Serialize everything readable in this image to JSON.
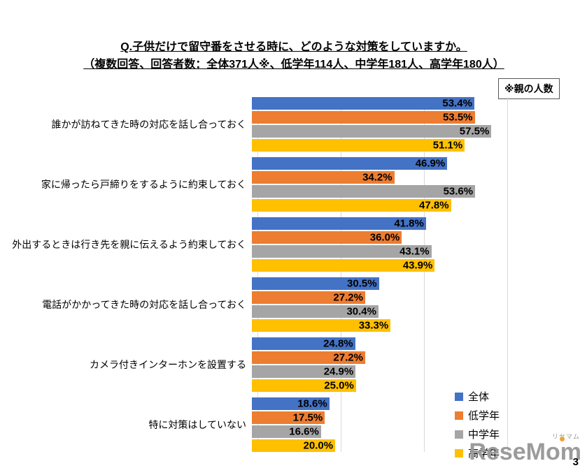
{
  "header": {
    "title": "Q.子供だけで留守番をさせる時に、どのような対策をしていますか。",
    "subtitle": "（複数回答、回答者数：全体371人※、低学年114人、中学年181人、高学年180人）",
    "note": "※親の人数"
  },
  "chart_data": {
    "type": "bar",
    "orientation": "horizontal",
    "title": "Q.子供だけで留守番をさせる時に、どのような対策をしていますか。",
    "categories": [
      "誰かが訪ねてきた時の対応を話し合っておく",
      "家に帰ったら戸締りをするように約束しておく",
      "外出するときは行き先を親に伝えるよう約束しておく",
      "電話がかかってきた時の対応を話し合っておく",
      "カメラ付きインターホンを設置する",
      "特に対策はしていない"
    ],
    "series": [
      {
        "name": "全体",
        "color": "#4472C4",
        "values": [
          53.4,
          46.9,
          41.8,
          30.5,
          24.8,
          18.6
        ]
      },
      {
        "name": "低学年",
        "color": "#ED7D31",
        "values": [
          53.5,
          34.2,
          36.0,
          27.2,
          27.2,
          17.5
        ]
      },
      {
        "name": "中学年",
        "color": "#A5A5A5",
        "values": [
          57.5,
          53.6,
          43.1,
          30.4,
          24.9,
          16.6
        ]
      },
      {
        "name": "高学年",
        "color": "#FFC000",
        "values": [
          51.1,
          47.8,
          43.9,
          33.3,
          25.0,
          20.0
        ]
      }
    ],
    "value_suffix": "%",
    "xlim": [
      0,
      65
    ],
    "gridlines_percent": [
      0,
      20,
      40,
      60
    ],
    "grid": true,
    "legend_position": "bottom-right"
  },
  "footer": {
    "watermark_text": "ReseMom",
    "watermark_ruby": "リセマム",
    "page_number": "3"
  }
}
